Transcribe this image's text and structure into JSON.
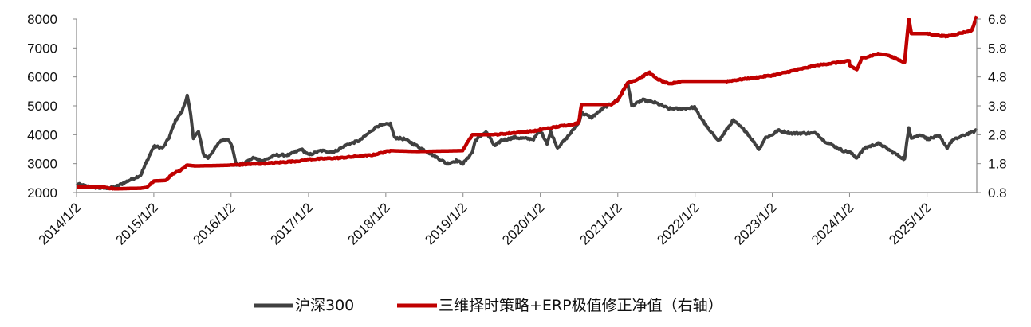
{
  "chart_data": {
    "type": "line",
    "title": "",
    "x_ticks": [
      "2014/1/2",
      "2015/1/2",
      "2016/1/2",
      "2017/1/2",
      "2018/1/2",
      "2019/1/2",
      "2020/1/2",
      "2021/1/2",
      "2022/1/2",
      "2023/1/2",
      "2024/1/2",
      "2025/1/2"
    ],
    "xlim": [
      "2014-01-02",
      "2025-08-25"
    ],
    "y_left": {
      "ticks": [
        "8000",
        "7000",
        "6000",
        "5000",
        "4000",
        "3000",
        "2000"
      ],
      "ylim": [
        2000,
        8000
      ]
    },
    "y_right": {
      "ticks": [
        "6.8",
        "5.8",
        "4.8",
        "3.8",
        "2.8",
        "1.8",
        "0.8"
      ],
      "ylim": [
        0.8,
        6.8
      ]
    },
    "grid": false,
    "legend_position": "bottom",
    "series": [
      {
        "name": "沪深300",
        "axis": "left",
        "color": "#404040",
        "points": [
          [
            "2014-01-02",
            2300
          ],
          [
            "2014-03-01",
            2200
          ],
          [
            "2014-05-01",
            2150
          ],
          [
            "2014-07-01",
            2180
          ],
          [
            "2014-09-01",
            2400
          ],
          [
            "2014-11-01",
            2600
          ],
          [
            "2014-12-01",
            3100
          ],
          [
            "2015-01-02",
            3600
          ],
          [
            "2015-02-15",
            3550
          ],
          [
            "2015-03-15",
            3900
          ],
          [
            "2015-04-15",
            4500
          ],
          [
            "2015-05-15",
            4800
          ],
          [
            "2015-06-09",
            5350
          ],
          [
            "2015-06-25",
            4700
          ],
          [
            "2015-07-08",
            3900
          ],
          [
            "2015-08-01",
            4100
          ],
          [
            "2015-08-26",
            3300
          ],
          [
            "2015-09-15",
            3200
          ],
          [
            "2015-10-15",
            3500
          ],
          [
            "2015-11-15",
            3800
          ],
          [
            "2015-12-20",
            3850
          ],
          [
            "2016-01-02",
            3700
          ],
          [
            "2016-01-28",
            2950
          ],
          [
            "2016-03-01",
            3000
          ],
          [
            "2016-04-15",
            3200
          ],
          [
            "2016-06-01",
            3100
          ],
          [
            "2016-08-01",
            3300
          ],
          [
            "2016-10-01",
            3300
          ],
          [
            "2016-11-29",
            3500
          ],
          [
            "2017-01-02",
            3300
          ],
          [
            "2017-03-01",
            3450
          ],
          [
            "2017-05-01",
            3400
          ],
          [
            "2017-07-01",
            3650
          ],
          [
            "2017-09-01",
            3800
          ],
          [
            "2017-11-22",
            4300
          ],
          [
            "2018-01-24",
            4380
          ],
          [
            "2018-02-12",
            3900
          ],
          [
            "2018-04-01",
            3850
          ],
          [
            "2018-06-01",
            3600
          ],
          [
            "2018-08-01",
            3350
          ],
          [
            "2018-10-18",
            3000
          ],
          [
            "2018-12-01",
            3100
          ],
          [
            "2019-01-02",
            3000
          ],
          [
            "2019-02-15",
            3400
          ],
          [
            "2019-03-01",
            3800
          ],
          [
            "2019-04-20",
            4100
          ],
          [
            "2019-06-01",
            3600
          ],
          [
            "2019-07-01",
            3800
          ],
          [
            "2019-09-01",
            3900
          ],
          [
            "2019-12-01",
            3850
          ],
          [
            "2020-01-02",
            4150
          ],
          [
            "2020-02-03",
            3700
          ],
          [
            "2020-02-20",
            4100
          ],
          [
            "2020-03-23",
            3550
          ],
          [
            "2020-05-01",
            3850
          ],
          [
            "2020-07-01",
            4400
          ],
          [
            "2020-07-15",
            4750
          ],
          [
            "2020-09-01",
            4600
          ],
          [
            "2020-11-01",
            4950
          ],
          [
            "2020-12-31",
            5200
          ],
          [
            "2021-01-02",
            5200
          ],
          [
            "2021-02-18",
            5800
          ],
          [
            "2021-03-09",
            5000
          ],
          [
            "2021-05-01",
            5200
          ],
          [
            "2021-07-01",
            5100
          ],
          [
            "2021-09-01",
            4900
          ],
          [
            "2021-11-01",
            4900
          ],
          [
            "2021-12-31",
            4950
          ],
          [
            "2022-01-02",
            4900
          ],
          [
            "2022-03-15",
            4100
          ],
          [
            "2022-04-26",
            3800
          ],
          [
            "2022-07-01",
            4500
          ],
          [
            "2022-09-01",
            4100
          ],
          [
            "2022-10-31",
            3500
          ],
          [
            "2022-12-01",
            3900
          ],
          [
            "2023-01-02",
            4000
          ],
          [
            "2023-01-28",
            4150
          ],
          [
            "2023-04-01",
            4050
          ],
          [
            "2023-07-31",
            4050
          ],
          [
            "2023-09-01",
            3800
          ],
          [
            "2023-12-01",
            3450
          ],
          [
            "2024-01-02",
            3400
          ],
          [
            "2024-02-05",
            3200
          ],
          [
            "2024-03-15",
            3550
          ],
          [
            "2024-05-20",
            3700
          ],
          [
            "2024-07-01",
            3500
          ],
          [
            "2024-09-18",
            3150
          ],
          [
            "2024-10-08",
            4250
          ],
          [
            "2024-10-20",
            3900
          ],
          [
            "2024-12-10",
            4000
          ],
          [
            "2025-01-02",
            3850
          ],
          [
            "2025-03-01",
            3950
          ],
          [
            "2025-04-07",
            3550
          ],
          [
            "2025-05-01",
            3800
          ],
          [
            "2025-07-01",
            4000
          ],
          [
            "2025-08-25",
            4150
          ]
        ]
      },
      {
        "name": "三维择时策略+ERP极值修正净值（右轴）",
        "axis": "right",
        "color": "#c00000",
        "points": [
          [
            "2014-01-02",
            1.0
          ],
          [
            "2014-05-01",
            1.0
          ],
          [
            "2014-07-01",
            0.93
          ],
          [
            "2014-11-01",
            0.95
          ],
          [
            "2014-12-01",
            0.98
          ],
          [
            "2015-01-02",
            1.2
          ],
          [
            "2015-03-01",
            1.22
          ],
          [
            "2015-04-01",
            1.45
          ],
          [
            "2015-05-15",
            1.6
          ],
          [
            "2015-06-09",
            1.75
          ],
          [
            "2015-07-15",
            1.72
          ],
          [
            "2015-12-01",
            1.74
          ],
          [
            "2016-01-02",
            1.75
          ],
          [
            "2016-06-01",
            1.8
          ],
          [
            "2016-12-01",
            1.9
          ],
          [
            "2017-01-02",
            1.95
          ],
          [
            "2017-06-01",
            2.0
          ],
          [
            "2017-11-01",
            2.1
          ],
          [
            "2018-01-24",
            2.25
          ],
          [
            "2018-06-01",
            2.22
          ],
          [
            "2018-12-31",
            2.25
          ],
          [
            "2019-01-02",
            2.3
          ],
          [
            "2019-02-15",
            2.8
          ],
          [
            "2019-06-01",
            2.8
          ],
          [
            "2019-12-31",
            2.95
          ],
          [
            "2020-01-02",
            2.98
          ],
          [
            "2020-07-01",
            3.2
          ],
          [
            "2020-07-15",
            3.85
          ],
          [
            "2020-12-01",
            3.85
          ],
          [
            "2021-01-02",
            4.0
          ],
          [
            "2021-02-18",
            4.6
          ],
          [
            "2021-04-01",
            4.7
          ],
          [
            "2021-06-01",
            4.95
          ],
          [
            "2021-07-01",
            4.75
          ],
          [
            "2021-09-01",
            4.55
          ],
          [
            "2021-11-01",
            4.65
          ],
          [
            "2021-12-31",
            4.65
          ],
          [
            "2022-06-01",
            4.65
          ],
          [
            "2022-12-31",
            4.85
          ],
          [
            "2023-01-02",
            4.85
          ],
          [
            "2023-06-01",
            5.1
          ],
          [
            "2023-08-01",
            5.2
          ],
          [
            "2023-12-31",
            5.35
          ],
          [
            "2024-01-02",
            5.2
          ],
          [
            "2024-02-05",
            5.05
          ],
          [
            "2024-03-01",
            5.45
          ],
          [
            "2024-05-20",
            5.6
          ],
          [
            "2024-07-01",
            5.55
          ],
          [
            "2024-09-18",
            5.3
          ],
          [
            "2024-10-08",
            6.8
          ],
          [
            "2024-10-20",
            6.3
          ],
          [
            "2024-12-31",
            6.3
          ],
          [
            "2025-04-01",
            6.2
          ],
          [
            "2025-06-01",
            6.3
          ],
          [
            "2025-08-01",
            6.4
          ],
          [
            "2025-08-25",
            6.9
          ]
        ]
      }
    ]
  }
}
